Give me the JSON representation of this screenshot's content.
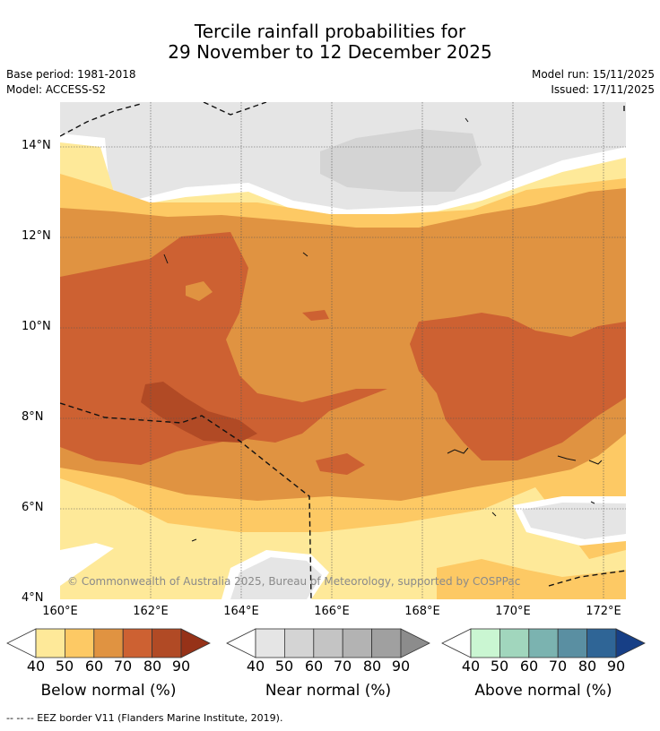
{
  "header": {
    "title_line1": "Tercile rainfall probabilities for",
    "title_line2": "29 November to 12 December 2025",
    "base_period": "Base period: 1981-2018",
    "model": "Model: ACCESS-S2",
    "model_run": "Model run: 15/11/2025",
    "issued": "Issued: 17/11/2025"
  },
  "map": {
    "lat_labels": [
      "14°N",
      "12°N",
      "10°N",
      "8°N",
      "6°N",
      "4°N"
    ],
    "lon_labels": [
      "160°E",
      "162°E",
      "164°E",
      "166°E",
      "168°E",
      "170°E",
      "172°E"
    ],
    "copyright": "© Commonwealth of Australia 2025, Bureau of Meteorology, supported by COSPPac",
    "extent": {
      "lon_min": 160,
      "lon_max": 172.5,
      "lat_min": 4,
      "lat_max": 15
    }
  },
  "colorbars": [
    {
      "title": "Below normal (%)",
      "ticks": [
        "40",
        "50",
        "60",
        "70",
        "80",
        "90"
      ],
      "colors": [
        "#ffffff",
        "#fee999",
        "#fdc964",
        "#e09341",
        "#cd6132",
        "#b14a25",
        "#963218"
      ]
    },
    {
      "title": "Near normal (%)",
      "ticks": [
        "40",
        "50",
        "60",
        "70",
        "80",
        "90"
      ],
      "colors": [
        "#ffffff",
        "#e5e5e5",
        "#d4d4d4",
        "#c4c4c4",
        "#b3b3b3",
        "#a0a0a0",
        "#8c8c8c"
      ]
    },
    {
      "title": "Above normal (%)",
      "ticks": [
        "40",
        "50",
        "60",
        "70",
        "80",
        "90"
      ],
      "colors": [
        "#ffffff",
        "#caf6d2",
        "#a1d6bd",
        "#7bb3b0",
        "#5a8fa2",
        "#2f6596",
        "#173f86"
      ]
    }
  ],
  "footer": {
    "legend_line": "--  --  -- EEZ border V11 (Flanders Marine Institute, 2019)."
  }
}
